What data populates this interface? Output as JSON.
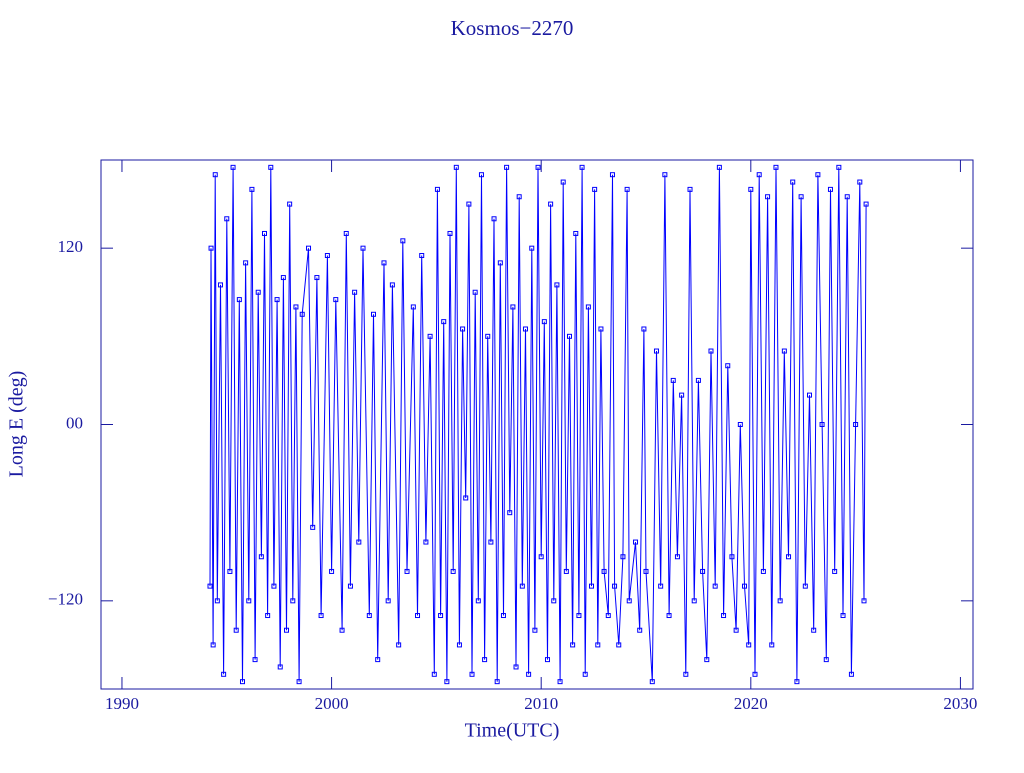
{
  "chart_data": {
    "type": "line",
    "title": "Kosmos−2270",
    "xlabel": "Time(UTC)",
    "ylabel": "Long E (deg)",
    "xlim": [
      1989,
      2030.6
    ],
    "xticks": [
      1990,
      2000,
      2010,
      2020,
      2030
    ],
    "ylim": [
      -180,
      180
    ],
    "yticks": [
      {
        "value": -120,
        "label": "−120"
      },
      {
        "value": 0,
        "label": "00"
      },
      120
    ],
    "series": [
      {
        "color": "#0000ff",
        "x": [
          1994.2,
          1994.25,
          1994.35,
          1994.45,
          1994.55,
          1994.7,
          1994.85,
          1995.0,
          1995.15,
          1995.3,
          1995.45,
          1995.6,
          1995.75,
          1995.9,
          1996.05,
          1996.2,
          1996.35,
          1996.5,
          1996.65,
          1996.8,
          1996.95,
          1997.1,
          1997.25,
          1997.4,
          1997.55,
          1997.7,
          1997.85,
          1998.0,
          1998.15,
          1998.3,
          1998.45,
          1998.6,
          1998.9,
          1999.1,
          1999.3,
          1999.5,
          1999.8,
          2000.0,
          2000.2,
          2000.5,
          2000.7,
          2000.9,
          2001.1,
          2001.3,
          2001.5,
          2001.8,
          2002.0,
          2002.2,
          2002.5,
          2002.7,
          2002.9,
          2003.2,
          2003.4,
          2003.6,
          2003.9,
          2004.1,
          2004.3,
          2004.5,
          2004.7,
          2004.9,
          2005.05,
          2005.2,
          2005.35,
          2005.5,
          2005.65,
          2005.8,
          2005.95,
          2006.1,
          2006.25,
          2006.4,
          2006.55,
          2006.7,
          2006.85,
          2007.0,
          2007.15,
          2007.3,
          2007.45,
          2007.6,
          2007.75,
          2007.9,
          2008.05,
          2008.2,
          2008.35,
          2008.5,
          2008.65,
          2008.8,
          2008.95,
          2009.1,
          2009.25,
          2009.4,
          2009.55,
          2009.7,
          2009.85,
          2010.0,
          2010.15,
          2010.3,
          2010.45,
          2010.6,
          2010.75,
          2010.9,
          2011.05,
          2011.2,
          2011.35,
          2011.5,
          2011.65,
          2011.8,
          2011.95,
          2012.1,
          2012.25,
          2012.4,
          2012.55,
          2012.7,
          2012.85,
          2013.0,
          2013.2,
          2013.4,
          2013.5,
          2013.7,
          2013.9,
          2014.1,
          2014.2,
          2014.5,
          2014.7,
          2014.9,
          2015.0,
          2015.3,
          2015.5,
          2015.7,
          2015.9,
          2016.1,
          2016.3,
          2016.5,
          2016.7,
          2016.9,
          2017.1,
          2017.3,
          2017.5,
          2017.7,
          2017.9,
          2018.1,
          2018.3,
          2018.5,
          2018.7,
          2018.9,
          2019.1,
          2019.3,
          2019.5,
          2019.7,
          2019.9,
          2020.0,
          2020.2,
          2020.4,
          2020.6,
          2020.8,
          2021.0,
          2021.2,
          2021.4,
          2021.6,
          2021.8,
          2022.0,
          2022.2,
          2022.4,
          2022.6,
          2022.8,
          2023.0,
          2023.2,
          2023.4,
          2023.6,
          2023.8,
          2024.0,
          2024.2,
          2024.4,
          2024.6,
          2024.8,
          2025.0,
          2025.2,
          2025.4,
          2025.5
        ],
        "values": [
          -110,
          120,
          -150,
          170,
          -120,
          95,
          -170,
          140,
          -100,
          175,
          -140,
          85,
          -175,
          110,
          -120,
          160,
          -160,
          90,
          -90,
          130,
          -130,
          175,
          -110,
          85,
          -165,
          100,
          -140,
          150,
          -120,
          80,
          -175,
          75,
          120,
          -70,
          100,
          -130,
          115,
          -100,
          85,
          -140,
          130,
          -110,
          90,
          -80,
          120,
          -130,
          75,
          -160,
          110,
          -120,
          95,
          -150,
          125,
          -100,
          80,
          -130,
          115,
          -80,
          60,
          -170,
          160,
          -130,
          70,
          -175,
          130,
          -100,
          175,
          -150,
          65,
          -50,
          150,
          -170,
          90,
          -120,
          170,
          -160,
          60,
          -80,
          140,
          -175,
          110,
          -130,
          175,
          -60,
          80,
          -165,
          155,
          -110,
          65,
          -170,
          120,
          -140,
          175,
          -90,
          70,
          -160,
          150,
          -120,
          95,
          -175,
          165,
          -100,
          60,
          -150,
          130,
          -130,
          175,
          -170,
          80,
          -110,
          160,
          -150,
          65,
          -100,
          -130,
          170,
          -110,
          -150,
          -90,
          160,
          -120,
          -80,
          -140,
          65,
          -100,
          -175,
          50,
          -110,
          170,
          -130,
          30,
          -90,
          20,
          -170,
          160,
          -120,
          30,
          -100,
          -160,
          50,
          -110,
          175,
          -130,
          40,
          -90,
          -140,
          0,
          -110,
          -150,
          160,
          -170,
          170,
          -100,
          155,
          -150,
          175,
          -120,
          50,
          -90,
          165,
          -175,
          155,
          -110,
          20,
          -140,
          170,
          0,
          -160,
          160,
          -100,
          175,
          -130,
          155,
          -170,
          0,
          165,
          -120,
          150
        ]
      }
    ]
  }
}
